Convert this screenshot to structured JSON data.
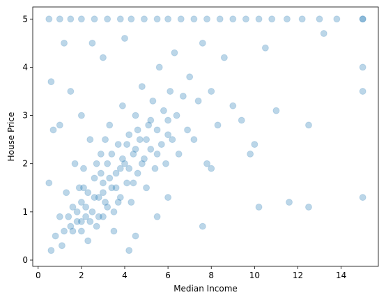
{
  "chart_data": {
    "type": "scatter",
    "x_label": "Median Income",
    "y_label": "House Price",
    "color": "#1f77b4",
    "alpha": 0.3,
    "xlim": [
      -0.25,
      15.72
    ],
    "ylim": [
      -0.13,
      5.25
    ],
    "xticks": [
      0,
      2,
      4,
      6,
      8,
      10,
      12,
      14
    ],
    "yticks": [
      0,
      1,
      2,
      3,
      4,
      5
    ],
    "x": [
      0.5,
      1.0,
      1.5,
      2.0,
      2.6,
      3.2,
      3.8,
      4.3,
      4.9,
      5.5,
      6.0,
      6.6,
      7.2,
      7.8,
      8.4,
      9.0,
      9.6,
      10.2,
      10.8,
      11.5,
      12.2,
      13.0,
      13.8,
      15.0,
      15.0,
      15.0,
      15.0,
      15.0,
      0.8,
      1.0,
      1.2,
      1.3,
      1.5,
      1.6,
      1.7,
      1.8,
      1.9,
      2.0,
      2.0,
      2.1,
      2.2,
      2.3,
      2.4,
      2.5,
      2.6,
      2.7,
      2.8,
      2.9,
      3.0,
      3.0,
      3.1,
      3.2,
      3.3,
      3.4,
      3.5,
      3.6,
      3.7,
      3.8,
      3.9,
      4.0,
      4.1,
      4.2,
      4.3,
      4.4,
      4.5,
      4.6,
      4.7,
      4.8,
      4.9,
      5.0,
      5.1,
      5.2,
      5.3,
      5.4,
      5.5,
      5.6,
      5.7,
      5.8,
      5.9,
      6.0,
      6.1,
      6.2,
      6.3,
      6.4,
      6.5,
      6.7,
      6.9,
      7.0,
      7.2,
      7.4,
      7.6,
      7.8,
      8.0,
      8.3,
      8.6,
      9.0,
      9.4,
      10.0,
      10.5,
      11.0,
      11.6,
      12.5,
      12.5,
      13.2,
      10.2,
      9.8,
      2.0,
      1.5,
      1.0,
      0.5,
      0.6,
      0.7,
      3.0,
      2.5,
      4.0,
      1.2,
      3.5,
      4.5,
      6.0,
      7.6,
      4.2,
      1.1,
      0.6,
      2.3,
      5.5,
      8.0,
      2.2,
      2.6,
      3.0,
      3.3,
      3.6,
      3.9,
      4.2,
      4.5,
      4.8,
      5.0,
      3.2,
      2.8,
      2.4,
      1.8,
      1.6,
      2.0,
      3.8,
      4.1,
      4.4,
      5.2,
      1.4,
      2.9,
      3.4,
      3.7,
      4.6,
      5.5,
      6.0,
      2.1,
      2.7,
      3.1
    ],
    "y": [
      5.0,
      5.0,
      5.0,
      5.0,
      5.0,
      5.0,
      5.0,
      5.0,
      5.0,
      5.0,
      5.0,
      5.0,
      5.0,
      5.0,
      5.0,
      5.0,
      5.0,
      5.0,
      5.0,
      5.0,
      5.0,
      5.0,
      5.0,
      5.0,
      5.0,
      4.0,
      3.5,
      1.3,
      0.5,
      0.9,
      0.6,
      1.4,
      0.7,
      1.1,
      2.0,
      0.8,
      1.5,
      0.6,
      1.2,
      1.9,
      0.9,
      1.4,
      2.5,
      1.0,
      1.7,
      0.7,
      1.3,
      2.2,
      1.6,
      0.9,
      1.2,
      2.0,
      2.8,
      1.5,
      1.0,
      1.8,
      2.4,
      1.3,
      3.2,
      2.0,
      1.6,
      2.6,
      1.2,
      2.2,
      3.0,
      1.8,
      2.5,
      3.6,
      2.1,
      1.5,
      2.8,
      2.3,
      3.3,
      1.9,
      2.7,
      4.0,
      2.4,
      3.1,
      2.0,
      2.9,
      3.5,
      2.5,
      4.3,
      3.0,
      2.2,
      3.4,
      2.7,
      3.8,
      2.5,
      3.3,
      4.5,
      2.0,
      3.5,
      2.8,
      4.2,
      3.2,
      2.9,
      2.4,
      4.4,
      3.1,
      1.2,
      2.8,
      1.1,
      4.7,
      1.1,
      2.2,
      3.0,
      3.5,
      2.8,
      1.6,
      3.7,
      2.7,
      4.2,
      4.5,
      4.6,
      4.5,
      0.6,
      0.5,
      1.3,
      0.7,
      0.2,
      0.3,
      0.2,
      0.4,
      0.9,
      1.9,
      1.1,
      1.3,
      1.4,
      1.7,
      1.5,
      2.1,
      1.9,
      2.3,
      2.0,
      2.5,
      1.1,
      0.9,
      0.8,
      1.0,
      0.6,
      0.8,
      1.9,
      2.4,
      1.6,
      2.9,
      0.9,
      1.8,
      2.2,
      1.2,
      2.7,
      2.2,
      2.6,
      1.5,
      2.0,
      2.5
    ]
  }
}
